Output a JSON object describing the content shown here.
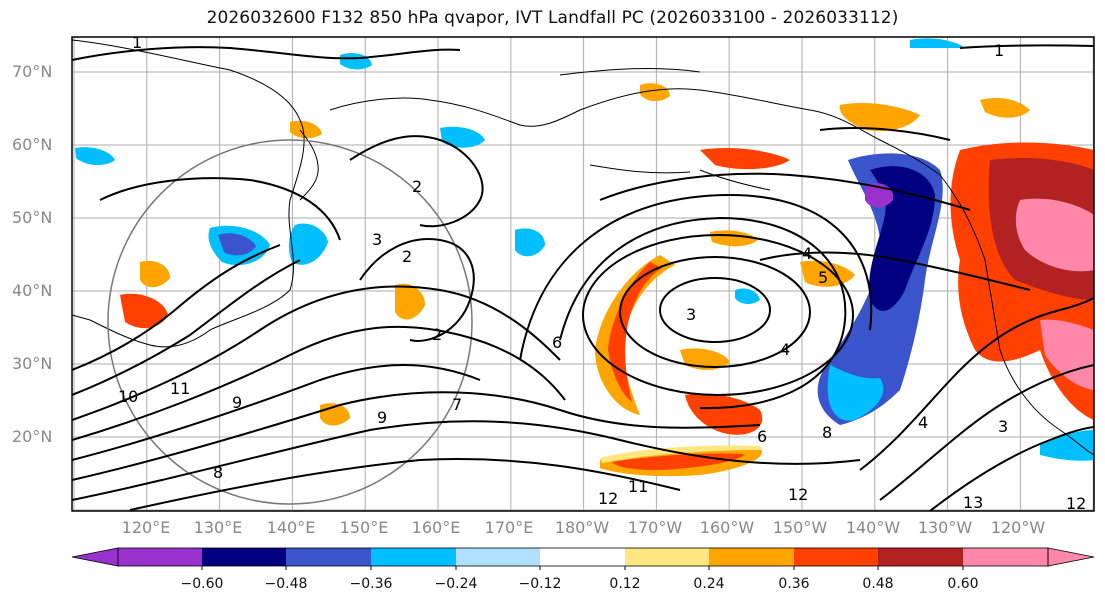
{
  "title": "2026032600 F132 850 hPa qvapor, IVT Landfall PC (2026033100 - 2026033112)",
  "map": {
    "lat_ticks": [
      "70°N",
      "60°N",
      "50°N",
      "40°N",
      "30°N",
      "20°N"
    ],
    "lon_ticks": [
      "120°E",
      "130°E",
      "140°E",
      "150°E",
      "160°E",
      "170°E",
      "180°W",
      "170°W",
      "160°W",
      "150°W",
      "140°W",
      "130°W",
      "120°W"
    ],
    "lat_range": [
      10,
      75
    ],
    "lon_range": [
      112,
      253
    ],
    "contour_labels": [
      "1",
      "1",
      "2",
      "2",
      "2",
      "3",
      "3",
      "4",
      "4",
      "5",
      "6",
      "7",
      "8",
      "8",
      "9",
      "9",
      "10",
      "11",
      "11",
      "12",
      "12",
      "12",
      "13",
      "4",
      "3",
      "6"
    ],
    "fill_colors": {
      "purple": "#9932cc",
      "navy": "#000080",
      "royal": "#3a55cc",
      "cyan": "#00bfff",
      "lightblue": "#b0e0ff",
      "yellow": "#ffe680",
      "orange": "#ffa500",
      "redorange": "#ff4000",
      "darkred": "#b22222",
      "pink": "#ff88aa"
    }
  },
  "colorbar": {
    "colors": [
      "#9932cc",
      "#000080",
      "#3a55cc",
      "#00bfff",
      "#b0e0ff",
      "#ffffff",
      "#ffe680",
      "#ffa500",
      "#ff4000",
      "#b22222",
      "#ff88aa"
    ],
    "tick_labels": [
      "−0.60",
      "−0.48",
      "−0.36",
      "−0.24",
      "−0.12",
      "0.12",
      "0.24",
      "0.36",
      "0.48",
      "0.60"
    ]
  }
}
